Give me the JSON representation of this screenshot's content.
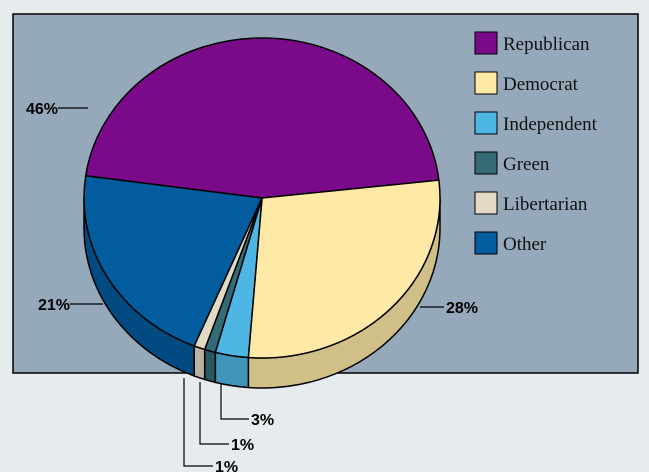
{
  "chart_data": {
    "type": "pie",
    "title": "",
    "style": "3d",
    "legend_position": "top-right",
    "slices": [
      {
        "name": "Republican",
        "value": 46,
        "label": "46%",
        "color": "#7b0a8a"
      },
      {
        "name": "Democrat",
        "value": 28,
        "label": "28%",
        "color": "#ffe9a6"
      },
      {
        "name": "Independent",
        "value": 3,
        "label": "3%",
        "color": "#4eb6e4"
      },
      {
        "name": "Green",
        "value": 1,
        "label": "1%",
        "color": "#336b76"
      },
      {
        "name": "Libertarian",
        "value": 1,
        "label": "1%",
        "color": "#e3dac6"
      },
      {
        "name": "Other",
        "value": 21,
        "label": "21%",
        "color": "#035c9e"
      }
    ]
  },
  "colors": {
    "page_background": "#e6ebee",
    "plot_background": "#96a9bb",
    "outline": "#000000"
  }
}
